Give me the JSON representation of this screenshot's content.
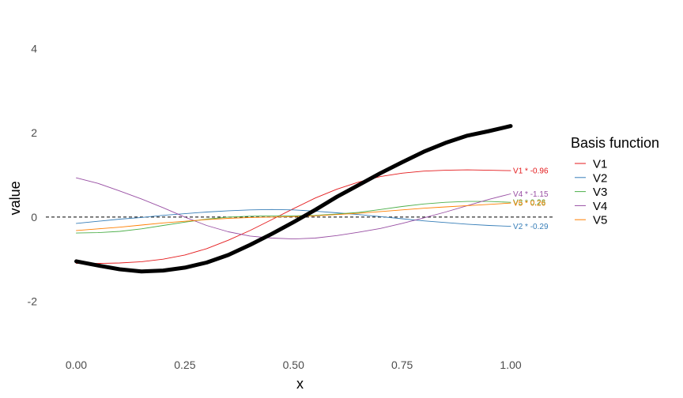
{
  "chart_data": {
    "type": "line",
    "title": "",
    "xlabel": "x",
    "ylabel": "value",
    "xlim": [
      -0.07,
      1.1
    ],
    "ylim": [
      -3.3,
      4.55
    ],
    "x_ticks": [
      0,
      0.25,
      0.5,
      0.75,
      1
    ],
    "x_tick_labels": [
      "0.00",
      "0.25",
      "0.50",
      "0.75",
      "1.00"
    ],
    "y_ticks": [
      -2,
      0,
      2,
      4
    ],
    "y_tick_labels": [
      "-2",
      "0",
      "2",
      "4"
    ],
    "grid": false,
    "reference_line": {
      "y": 0,
      "style": "dashed",
      "color": "#000000"
    },
    "legend": {
      "title": "Basis function",
      "position": "right"
    },
    "x": [
      0,
      0.05,
      0.1,
      0.15,
      0.2,
      0.25,
      0.3,
      0.35,
      0.4,
      0.45,
      0.5,
      0.55,
      0.6,
      0.65,
      0.7,
      0.75,
      0.8,
      0.85,
      0.9,
      0.95,
      1.0
    ],
    "series": [
      {
        "name": "V1",
        "color": "#E41A1C",
        "annotation": "V1 * -0.96",
        "values": [
          -1.1,
          -1.1,
          -1.09,
          -1.06,
          -1.0,
          -0.9,
          -0.75,
          -0.55,
          -0.32,
          -0.06,
          0.2,
          0.45,
          0.66,
          0.83,
          0.96,
          1.04,
          1.09,
          1.11,
          1.12,
          1.11,
          1.1
        ]
      },
      {
        "name": "V2",
        "color": "#377EB8",
        "annotation": "V2 * -0.29",
        "values": [
          -0.15,
          -0.1,
          -0.05,
          -0.01,
          0.04,
          0.08,
          0.12,
          0.15,
          0.17,
          0.18,
          0.17,
          0.14,
          0.1,
          0.06,
          0.01,
          -0.04,
          -0.09,
          -0.13,
          -0.17,
          -0.2,
          -0.22
        ]
      },
      {
        "name": "V3",
        "color": "#4DAF4A",
        "annotation": "V3 * 0.26",
        "values": [
          -0.38,
          -0.37,
          -0.34,
          -0.28,
          -0.2,
          -0.12,
          -0.05,
          0.0,
          0.02,
          0.03,
          0.03,
          0.04,
          0.07,
          0.11,
          0.18,
          0.25,
          0.31,
          0.35,
          0.37,
          0.37,
          0.35
        ]
      },
      {
        "name": "V4",
        "color": "#984EA3",
        "annotation": "V4 * -1.15",
        "values": [
          0.93,
          0.8,
          0.62,
          0.43,
          0.22,
          0.0,
          -0.2,
          -0.35,
          -0.45,
          -0.5,
          -0.52,
          -0.5,
          -0.44,
          -0.36,
          -0.27,
          -0.15,
          -0.02,
          0.12,
          0.27,
          0.42,
          0.55
        ]
      },
      {
        "name": "V5",
        "color": "#FF7F00",
        "annotation": "V5 * 0.26",
        "values": [
          -0.32,
          -0.28,
          -0.24,
          -0.19,
          -0.14,
          -0.1,
          -0.06,
          -0.03,
          -0.01,
          0.0,
          0.01,
          0.03,
          0.06,
          0.09,
          0.13,
          0.17,
          0.21,
          0.24,
          0.27,
          0.3,
          0.33
        ]
      },
      {
        "name": "",
        "color": "#000000",
        "role": "combined fit",
        "values": [
          -1.05,
          -1.15,
          -1.24,
          -1.29,
          -1.27,
          -1.2,
          -1.08,
          -0.9,
          -0.66,
          -0.4,
          -0.12,
          0.17,
          0.48,
          0.76,
          1.04,
          1.3,
          1.55,
          1.76,
          1.93,
          2.04,
          2.16
        ]
      }
    ]
  }
}
